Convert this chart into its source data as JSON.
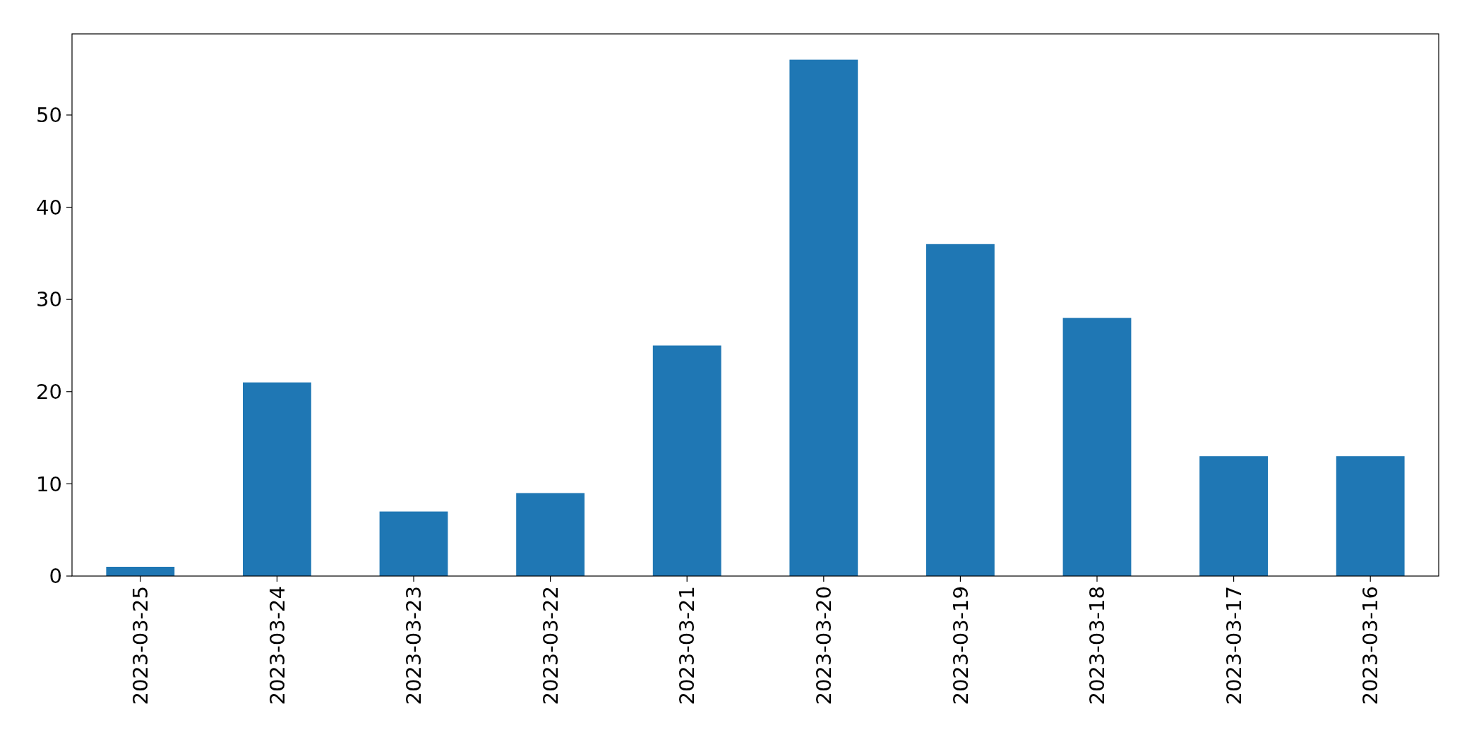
{
  "chart_data": {
    "type": "bar",
    "categories": [
      "2023-03-25",
      "2023-03-24",
      "2023-03-23",
      "2023-03-22",
      "2023-03-21",
      "2023-03-20",
      "2023-03-19",
      "2023-03-18",
      "2023-03-17",
      "2023-03-16"
    ],
    "values": [
      1,
      21,
      7,
      9,
      25,
      56,
      36,
      28,
      13,
      13
    ],
    "color": "#1f77b4",
    "ylim": [
      0,
      58.8
    ],
    "yticks": [
      0,
      10,
      20,
      30,
      40,
      50
    ],
    "grid": false
  }
}
